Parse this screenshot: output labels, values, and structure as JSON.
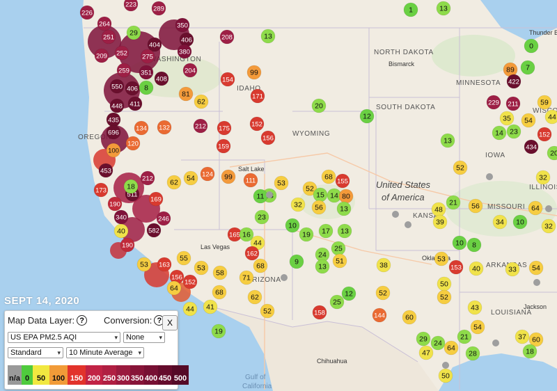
{
  "map": {
    "labels": {
      "states": [
        "NORTH DAKOTA",
        "SOUTH DAKOTA",
        "MINNESOTA",
        "WYOMING",
        "IOWA",
        "MISSOURI",
        "ARKANSAS",
        "LOUISIANA",
        "OREGON",
        "IDAHO",
        "ILLINOIS",
        "KANSAS",
        "ARIZONA",
        "WASHINGTON",
        "WISCONSIN"
      ],
      "cities": [
        "Bismarck",
        "Thunder B",
        "Jackson",
        "Chihuahua",
        "Oklahoma",
        "Las Vegas",
        "Salt Lake"
      ],
      "country": [
        "United States",
        "of America"
      ],
      "water": [
        "Gulf of",
        "California"
      ]
    },
    "aqi_colors": {
      "good": "#6ad043",
      "moderate": "#f4e24a",
      "usg": "#f59c3a",
      "unhealthy": "#e03c2c",
      "very_unhealthy": "#a9233e",
      "hazardous": "#7a1238"
    }
  },
  "sensor_values": [
    "226",
    "223",
    "289",
    "264",
    "251",
    "29",
    "350",
    "406",
    "208",
    "13",
    "1",
    "13",
    "0",
    "7",
    "252",
    "404",
    "380",
    "209",
    "275",
    "351",
    "204",
    "259",
    "408",
    "99",
    "171",
    "154",
    "89",
    "422",
    "550",
    "406",
    "8",
    "81",
    "62",
    "229",
    "211",
    "59",
    "44",
    "448",
    "411",
    "20",
    "12",
    "35",
    "14",
    "23",
    "54",
    "435",
    "696",
    "212",
    "175",
    "134",
    "132",
    "152",
    "156",
    "152",
    "13",
    "120",
    "159",
    "434",
    "20",
    "32",
    "100",
    "124",
    "62",
    "54",
    "99",
    "111",
    "53",
    "52",
    "453",
    "173",
    "212",
    "23",
    "68",
    "155",
    "190",
    "511",
    "169",
    "15",
    "14",
    "80",
    "13",
    "32",
    "56",
    "52",
    "21",
    "56",
    "64",
    "48",
    "39",
    "18",
    "246",
    "582",
    "11",
    "23",
    "10",
    "34",
    "32",
    "40",
    "340",
    "190",
    "165",
    "16",
    "10",
    "19",
    "17",
    "13",
    "10",
    "25",
    "44",
    "53",
    "163",
    "162",
    "68",
    "24",
    "51",
    "8",
    "40",
    "33",
    "54",
    "55",
    "53",
    "58",
    "71",
    "9",
    "13",
    "53",
    "153",
    "156",
    "152",
    "64",
    "68",
    "62",
    "52",
    "12",
    "25",
    "38",
    "52",
    "50",
    "52",
    "43",
    "44",
    "41",
    "158",
    "144",
    "60",
    "54",
    "21",
    "37",
    "60",
    "24",
    "29",
    "64",
    "28",
    "47",
    "18",
    "19",
    "50",
    "45",
    "24"
  ],
  "date_caption": "SEPT 14, 2020",
  "panel": {
    "map_data_layer_label": "Map Data Layer:",
    "conversion_label": "Conversion:",
    "help_glyph": "?",
    "close_label": "X",
    "layer_select_value": "US EPA PM2.5 AQI",
    "conversion_select_value": "None",
    "style_select_value": "Standard",
    "average_select_value": "10 Minute Average",
    "legend": [
      "n/a",
      "0",
      "50",
      "100",
      "150",
      "200",
      "250",
      "300",
      "350",
      "400",
      "450",
      "500"
    ],
    "legend_colors": [
      "#999999",
      "#4fcb3d",
      "#f1e840",
      "#f19b38",
      "#e2332b",
      "#c12345",
      "#b01f42",
      "#9a1a3e",
      "#871438",
      "#771033",
      "#650c2c",
      "#550a27"
    ]
  }
}
